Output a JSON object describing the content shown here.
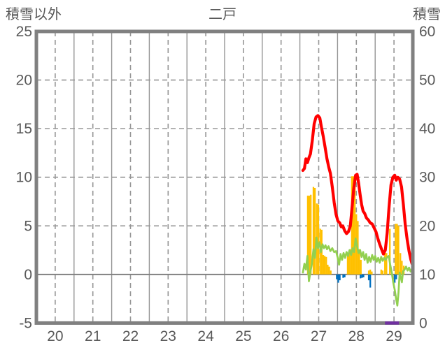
{
  "header": {
    "left_axis_title": "積雪以外",
    "title": "二戸",
    "right_axis_title": "積雪"
  },
  "chart_data": {
    "type": "mixed",
    "title": "二戸",
    "legend": "none",
    "grid": "on",
    "left_axis": {
      "label": "積雪以外",
      "min": -5,
      "max": 25,
      "ticks": [
        25,
        20,
        15,
        10,
        5,
        0,
        -5
      ],
      "dashed_gridline_values": [
        20,
        15,
        10,
        5
      ],
      "solid_gridline_values": [
        0
      ]
    },
    "right_axis": {
      "label": "積雪",
      "min": 0,
      "max": 60,
      "ticks": [
        60,
        50,
        40,
        30,
        20,
        10,
        0
      ]
    },
    "x_axis": {
      "min": 19.5,
      "max": 29.5,
      "tick_labels": [
        "20",
        "21",
        "22",
        "23",
        "24",
        "25",
        "26",
        "27",
        "28",
        "29"
      ],
      "day_centers": [
        20,
        21,
        22,
        23,
        24,
        25,
        26,
        27,
        28,
        29
      ],
      "day_boundaries": [
        20.5,
        21.5,
        22.5,
        23.5,
        24.5,
        25.5,
        26.5,
        27.5,
        28.5
      ]
    },
    "colors": {
      "red_line": "#FF0000",
      "green_line": "#92D050",
      "orange_bars": "#FFC000",
      "blue_bars": "#0070C0",
      "purple_line": "#7030A0",
      "frame": "#808080",
      "gridline": "#969696",
      "text": "#595959"
    },
    "series": [
      {
        "name": "orange-bars",
        "type": "bar",
        "axis": "left",
        "color": "#FFC000",
        "bar_width_days": 0.042,
        "bars": [
          [
            26.71,
            8.1
          ],
          [
            26.75,
            8.1
          ],
          [
            26.79,
            8.2
          ],
          [
            26.86,
            9.0
          ],
          [
            26.9,
            8.9
          ],
          [
            26.95,
            7.3
          ],
          [
            26.99,
            7.2
          ],
          [
            27.04,
            4.7
          ],
          [
            27.08,
            4.6
          ],
          [
            27.12,
            2.0
          ],
          [
            27.16,
            1.9
          ],
          [
            27.2,
            1.8
          ],
          [
            27.24,
            1.0
          ],
          [
            27.28,
            0.8
          ],
          [
            27.32,
            0.4
          ],
          [
            27.77,
            2.1
          ],
          [
            27.81,
            2.4
          ],
          [
            27.85,
            2.6
          ],
          [
            27.88,
            10.1
          ],
          [
            27.92,
            10.1
          ],
          [
            27.96,
            9.9
          ],
          [
            28.0,
            6.2
          ],
          [
            28.04,
            5.5
          ],
          [
            28.08,
            2.6
          ],
          [
            28.12,
            1.5
          ],
          [
            28.33,
            0.4
          ],
          [
            28.37,
            0.5
          ],
          [
            28.41,
            0.3
          ],
          [
            28.66,
            0.5
          ],
          [
            28.7,
            0.4
          ],
          [
            28.76,
            2.2
          ],
          [
            28.8,
            2.2
          ],
          [
            28.89,
            4.7
          ],
          [
            29.04,
            5.2
          ],
          [
            29.08,
            5.2
          ],
          [
            29.12,
            5.0
          ],
          [
            29.17,
            2.2
          ],
          [
            29.21,
            1.4
          ],
          [
            29.26,
            0.9
          ]
        ]
      },
      {
        "name": "blue-bars",
        "type": "bar",
        "axis": "left",
        "color": "#0070C0",
        "bar_width_days": 0.042,
        "bars": [
          [
            27.48,
            -0.5
          ],
          [
            27.52,
            -0.85
          ],
          [
            27.56,
            -0.6
          ],
          [
            27.65,
            -0.35
          ],
          [
            27.69,
            -0.3
          ],
          [
            28.11,
            -0.4
          ],
          [
            28.15,
            -0.35
          ],
          [
            28.19,
            -0.3
          ],
          [
            28.33,
            -0.6
          ],
          [
            28.37,
            -1.35
          ],
          [
            29.02,
            -0.85
          ],
          [
            29.06,
            -0.5
          ]
        ]
      },
      {
        "name": "green-line",
        "type": "line",
        "axis": "left",
        "color": "#92D050",
        "width": 2.7,
        "points": [
          [
            26.58,
            0.2
          ],
          [
            26.62,
            1.1
          ],
          [
            26.66,
            0.5
          ],
          [
            26.7,
            1.9
          ],
          [
            26.74,
            -0.7
          ],
          [
            26.78,
            0.3
          ],
          [
            26.82,
            1.1
          ],
          [
            26.86,
            2.6
          ],
          [
            26.9,
            1.7
          ],
          [
            26.94,
            3.8
          ],
          [
            26.98,
            2.7
          ],
          [
            27.02,
            3.3
          ],
          [
            27.06,
            2.3
          ],
          [
            27.1,
            3.1
          ],
          [
            27.14,
            2.7
          ],
          [
            27.18,
            3.0
          ],
          [
            27.22,
            2.6
          ],
          [
            27.26,
            2.9
          ],
          [
            27.31,
            2.4
          ],
          [
            27.36,
            2.7
          ],
          [
            27.41,
            2.3
          ],
          [
            27.46,
            2.4
          ],
          [
            27.5,
            1.8
          ],
          [
            27.54,
            1.0
          ],
          [
            27.58,
            2.1
          ],
          [
            27.62,
            1.5
          ],
          [
            27.66,
            2.2
          ],
          [
            27.7,
            1.7
          ],
          [
            27.74,
            2.3
          ],
          [
            27.78,
            1.9
          ],
          [
            27.82,
            2.5
          ],
          [
            27.86,
            2.0
          ],
          [
            27.9,
            2.7
          ],
          [
            27.94,
            2.3
          ],
          [
            27.98,
            3.7
          ],
          [
            28.02,
            2.9
          ],
          [
            28.06,
            2.2
          ],
          [
            28.1,
            2.5
          ],
          [
            28.14,
            1.8
          ],
          [
            28.18,
            2.3
          ],
          [
            28.22,
            1.5
          ],
          [
            28.26,
            2.1
          ],
          [
            28.3,
            1.2
          ],
          [
            28.34,
            1.8
          ],
          [
            28.38,
            1.3
          ],
          [
            28.42,
            2.0
          ],
          [
            28.46,
            1.5
          ],
          [
            28.5,
            1.9
          ],
          [
            28.54,
            1.3
          ],
          [
            28.58,
            1.7
          ],
          [
            28.62,
            1.2
          ],
          [
            28.66,
            1.8
          ],
          [
            28.7,
            1.4
          ],
          [
            28.74,
            1.7
          ],
          [
            28.78,
            1.5
          ],
          [
            28.82,
            1.8
          ],
          [
            28.86,
            1.9
          ],
          [
            28.9,
            1.0
          ],
          [
            28.94,
            0.2
          ],
          [
            28.98,
            -0.8
          ],
          [
            29.02,
            -1.6
          ],
          [
            29.06,
            -2.6
          ],
          [
            29.09,
            -3.2
          ],
          [
            29.12,
            -1.8
          ],
          [
            29.15,
            0.2
          ],
          [
            29.18,
            -0.3
          ],
          [
            29.21,
            -0.8
          ],
          [
            29.24,
            0.3
          ],
          [
            29.28,
            0.5
          ],
          [
            29.32,
            0.8
          ],
          [
            29.36,
            0.4
          ],
          [
            29.4,
            0.7
          ],
          [
            29.44,
            0.3
          ],
          [
            29.48,
            0.6
          ],
          [
            29.5,
            0.4
          ]
        ]
      },
      {
        "name": "red-line",
        "type": "line",
        "axis": "left",
        "color": "#FF0000",
        "width": 4.2,
        "points": [
          [
            26.58,
            10.7
          ],
          [
            26.62,
            10.9
          ],
          [
            26.66,
            11.9
          ],
          [
            26.7,
            11.5
          ],
          [
            26.74,
            12.0
          ],
          [
            26.78,
            12.4
          ],
          [
            26.83,
            13.8
          ],
          [
            26.88,
            15.5
          ],
          [
            26.93,
            16.2
          ],
          [
            26.98,
            16.35
          ],
          [
            27.03,
            16.1
          ],
          [
            27.07,
            15.2
          ],
          [
            27.12,
            14.2
          ],
          [
            27.17,
            13.1
          ],
          [
            27.22,
            11.9
          ],
          [
            27.27,
            11.0
          ],
          [
            27.31,
            10.4
          ],
          [
            27.36,
            9.0
          ],
          [
            27.41,
            7.4
          ],
          [
            27.46,
            6.2
          ],
          [
            27.51,
            5.5
          ],
          [
            27.56,
            5.3
          ],
          [
            27.6,
            4.9
          ],
          [
            27.64,
            5.0
          ],
          [
            27.69,
            4.5
          ],
          [
            27.74,
            4.2
          ],
          [
            27.79,
            4.4
          ],
          [
            27.84,
            5.0
          ],
          [
            27.88,
            6.6
          ],
          [
            27.93,
            8.8
          ],
          [
            27.98,
            10.2
          ],
          [
            28.02,
            10.3
          ],
          [
            28.06,
            9.4
          ],
          [
            28.1,
            8.2
          ],
          [
            28.14,
            7.2
          ],
          [
            28.18,
            6.5
          ],
          [
            28.22,
            6.3
          ],
          [
            28.27,
            5.8
          ],
          [
            28.32,
            5.6
          ],
          [
            28.37,
            5.3
          ],
          [
            28.42,
            5.2
          ],
          [
            28.47,
            4.8
          ],
          [
            28.52,
            4.4
          ],
          [
            28.57,
            3.7
          ],
          [
            28.62,
            3.1
          ],
          [
            28.67,
            2.6
          ],
          [
            28.72,
            2.1
          ],
          [
            28.77,
            2.5
          ],
          [
            28.82,
            4.3
          ],
          [
            28.87,
            7.0
          ],
          [
            28.92,
            9.2
          ],
          [
            28.97,
            10.0
          ],
          [
            29.02,
            10.2
          ],
          [
            29.06,
            9.7
          ],
          [
            29.1,
            10.0
          ],
          [
            29.15,
            9.8
          ],
          [
            29.2,
            9.0
          ],
          [
            29.25,
            7.2
          ],
          [
            29.3,
            5.1
          ],
          [
            29.35,
            3.6
          ],
          [
            29.4,
            2.4
          ],
          [
            29.45,
            1.5
          ],
          [
            29.48,
            1.1
          ],
          [
            29.5,
            1.3
          ]
        ]
      },
      {
        "name": "purple-line",
        "type": "line",
        "axis": "right",
        "color": "#7030A0",
        "width": 4.5,
        "points": [
          [
            28.76,
            0
          ],
          [
            29.13,
            0
          ]
        ]
      }
    ]
  }
}
